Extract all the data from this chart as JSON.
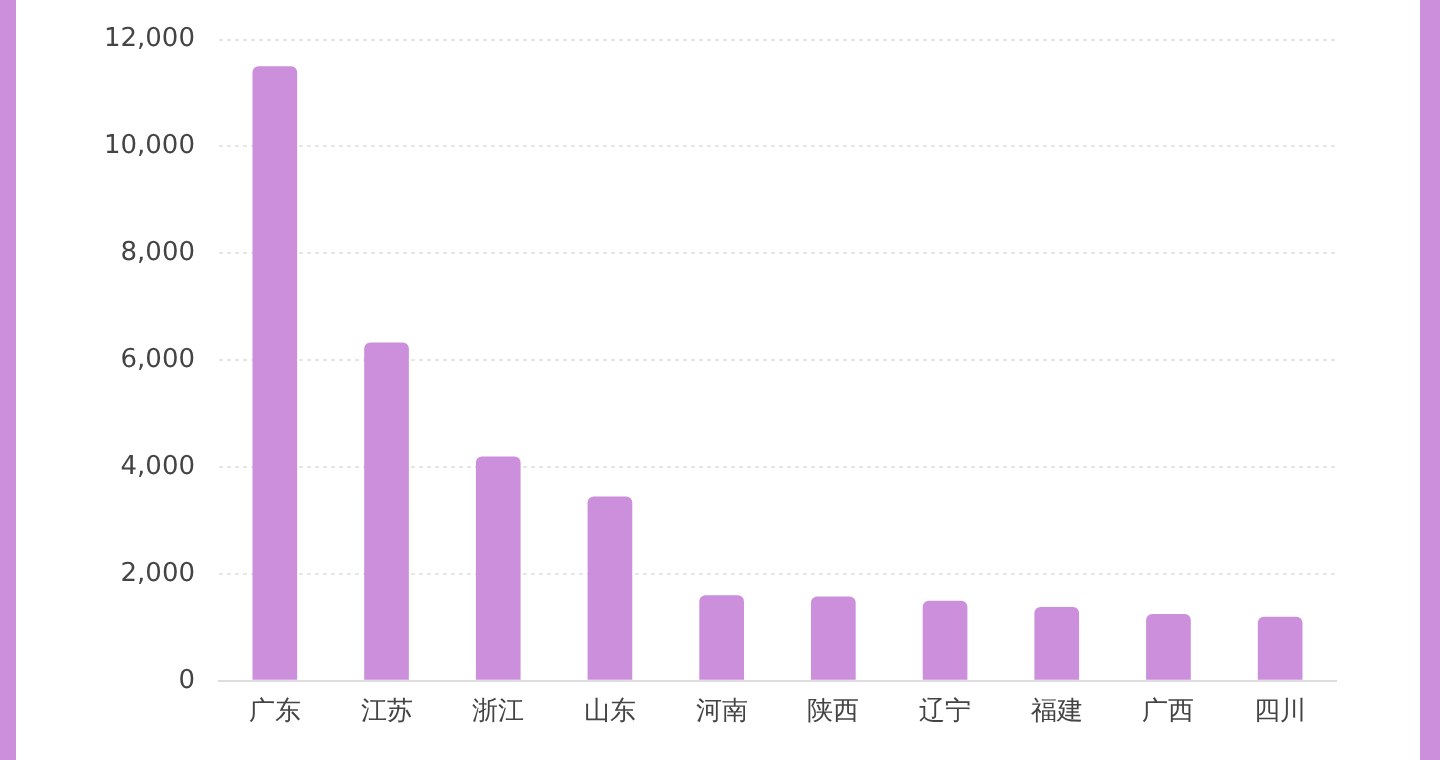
{
  "chart_data": {
    "type": "bar",
    "categories": [
      "广东",
      "江苏",
      "浙江",
      "山东",
      "河南",
      "陕西",
      "辽宁",
      "福建",
      "广西",
      "四川"
    ],
    "values": [
      11500,
      6330,
      4200,
      3450,
      1600,
      1580,
      1500,
      1380,
      1250,
      1200
    ],
    "color": "#cc8fdc",
    "ylim": [
      0,
      12000
    ],
    "yticks": [
      0,
      {
        "value": 2000,
        "label": "2,000"
      },
      {
        "value": 4000,
        "label": "4,000"
      },
      {
        "value": 6000,
        "label": "6,000"
      },
      {
        "value": 8000,
        "label": "8,000"
      },
      {
        "value": 10000,
        "label": "10,000"
      },
      {
        "value": 12000,
        "label": "12,000"
      }
    ],
    "grid": "y"
  }
}
